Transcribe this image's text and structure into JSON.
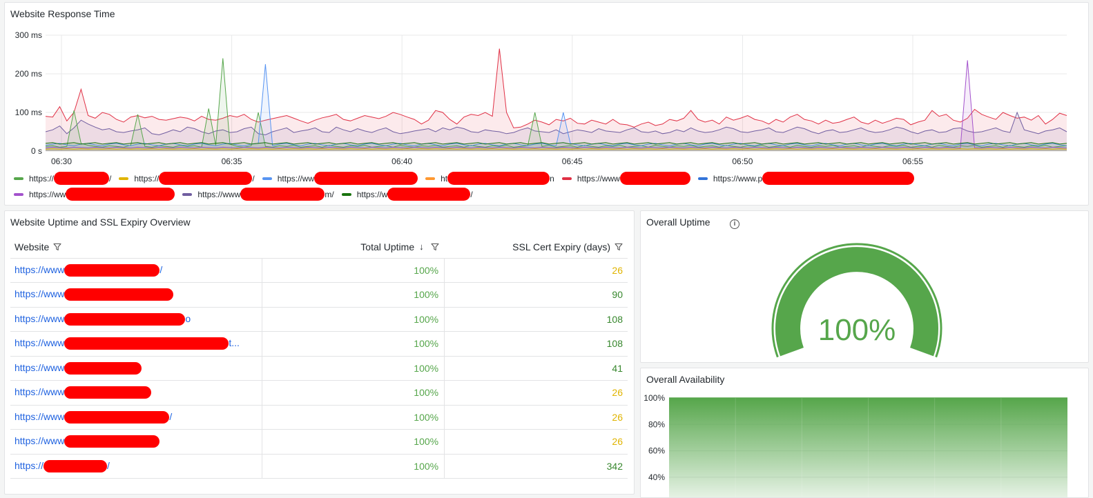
{
  "response_panel": {
    "title": "Website Response Time",
    "legend": [
      {
        "label": "https://",
        "suffix": "/",
        "color": "#56a64b"
      },
      {
        "label": "https://",
        "suffix": "/",
        "color": "#e0b400"
      },
      {
        "label": "https://ww",
        "suffix": "",
        "color": "#5794f2"
      },
      {
        "label": "ht",
        "suffix": "n",
        "color": "#ff9830"
      },
      {
        "label": "https://www",
        "suffix": "",
        "color": "#e02f44"
      },
      {
        "label": "https://www.p",
        "suffix": "",
        "color": "#3274d9"
      },
      {
        "label": "https://ww",
        "suffix": "",
        "color": "#a352cc"
      },
      {
        "label": "https://www",
        "suffix": "m/",
        "color": "#705da0"
      },
      {
        "label": "https://w",
        "suffix": "/",
        "color": "#19730e"
      }
    ]
  },
  "chart_data": {
    "type": "area",
    "title": "Website Response Time",
    "x_ticks": [
      "06:30",
      "06:35",
      "06:40",
      "06:45",
      "06:50",
      "06:55"
    ],
    "y_ticks": [
      "0 s",
      "100 ms",
      "200 ms",
      "300 ms"
    ],
    "ylim": [
      0,
      300
    ],
    "y_unit": "ms",
    "legend_placement": "bottom",
    "series": [
      {
        "color": "#e02f44",
        "values": [
          90,
          88,
          115,
          78,
          100,
          160,
          92,
          85,
          100,
          95,
          82,
          75,
          88,
          92,
          86,
          90,
          82,
          80,
          84,
          88,
          85,
          78,
          90,
          82,
          80,
          85,
          92,
          88,
          95,
          82,
          75,
          80,
          84,
          88,
          92,
          85,
          78,
          72,
          80,
          86,
          90,
          95,
          82,
          78,
          85,
          92,
          88,
          84,
          90,
          100,
          95,
          88,
          82,
          70,
          80,
          105,
          100,
          82,
          70,
          88,
          95,
          92,
          100,
          90,
          265,
          100,
          60,
          62,
          70,
          80,
          75,
          68,
          82,
          78,
          85,
          72,
          70,
          80,
          75,
          70,
          82,
          70,
          68,
          62,
          70,
          75,
          66,
          70,
          82,
          78,
          85,
          105,
          82,
          75,
          80,
          70,
          88,
          80,
          85,
          92,
          82,
          78,
          70,
          82,
          75,
          88,
          95,
          82,
          78,
          70,
          80,
          72,
          75,
          82,
          88,
          75,
          70,
          80,
          72,
          78,
          85,
          82,
          68,
          75,
          80,
          105,
          90,
          95,
          80,
          75,
          85,
          108,
          95,
          88,
          82,
          100,
          92,
          85,
          88,
          80,
          92,
          70,
          82,
          98,
          92
        ]
      },
      {
        "color": "#705da0",
        "values": [
          50,
          55,
          65,
          45,
          60,
          80,
          70,
          62,
          55,
          58,
          50,
          48,
          52,
          55,
          60,
          45,
          42,
          48,
          55,
          50,
          62,
          58,
          50,
          45,
          52,
          55,
          48,
          50,
          58,
          62,
          45,
          42,
          50,
          55,
          60,
          48,
          52,
          55,
          60,
          50,
          48,
          62,
          55,
          50,
          58,
          52,
          48,
          55,
          60,
          50,
          45,
          48,
          52,
          55,
          58,
          50,
          60,
          55,
          62,
          58,
          50,
          48,
          55,
          52,
          50,
          45,
          48,
          55,
          60,
          52,
          50,
          48,
          55,
          45,
          50,
          55,
          52,
          48,
          58,
          52,
          50,
          48,
          55,
          60,
          50,
          48,
          52,
          45,
          48,
          55,
          50,
          60,
          52,
          48,
          50,
          55,
          62,
          58,
          50,
          48,
          52,
          55,
          60,
          50,
          48,
          55,
          62,
          58,
          50,
          45,
          52,
          55,
          48,
          50,
          55,
          60,
          52,
          48,
          50,
          55,
          62,
          58,
          50,
          45,
          52,
          55,
          48,
          50,
          58,
          60,
          52,
          48,
          50,
          55,
          60,
          52,
          48,
          100,
          55,
          50,
          45,
          52,
          55,
          60,
          50
        ]
      },
      {
        "color": "#56a64b",
        "values": [
          12,
          14,
          10,
          12,
          105,
          20,
          15,
          12,
          10,
          14,
          12,
          10,
          15,
          95,
          12,
          10,
          14,
          12,
          10,
          15,
          12,
          14,
          10,
          110,
          15,
          240,
          18,
          12,
          10,
          14,
          100,
          12,
          10,
          14,
          12,
          15,
          10,
          12,
          14,
          10,
          15,
          12,
          10,
          14,
          12,
          15,
          10,
          12,
          14,
          10,
          15,
          12,
          10,
          14,
          12,
          15,
          10,
          12,
          14,
          10,
          15,
          12,
          10,
          14,
          12,
          15,
          10,
          12,
          14,
          100,
          12,
          15,
          10,
          12,
          14,
          10,
          15,
          12,
          10,
          14,
          12,
          15,
          10,
          12,
          14,
          10,
          15,
          12,
          10,
          14,
          12,
          15,
          10,
          12,
          14,
          10,
          15,
          12,
          10,
          14,
          12,
          15,
          10,
          12,
          14,
          10,
          15,
          12,
          10,
          14,
          12,
          15,
          10,
          12,
          14,
          10,
          15,
          12,
          10,
          14,
          12,
          15,
          10,
          12,
          14,
          10,
          15,
          12,
          10,
          14,
          12,
          15,
          10,
          12,
          14,
          10,
          15,
          12,
          10,
          14,
          12,
          15,
          10,
          12,
          14
        ]
      },
      {
        "color": "#5794f2",
        "values": [
          15,
          18,
          20,
          16,
          14,
          18,
          20,
          16,
          14,
          18,
          20,
          16,
          14,
          18,
          20,
          16,
          14,
          18,
          20,
          16,
          14,
          18,
          20,
          16,
          14,
          18,
          20,
          16,
          14,
          18,
          20,
          225,
          14,
          18,
          20,
          16,
          14,
          18,
          20,
          16,
          14,
          18,
          20,
          16,
          14,
          18,
          20,
          16,
          14,
          18,
          20,
          16,
          14,
          18,
          20,
          16,
          14,
          18,
          20,
          16,
          14,
          18,
          20,
          16,
          14,
          18,
          20,
          16,
          14,
          18,
          20,
          16,
          14,
          100,
          20,
          16,
          14,
          18,
          20,
          16,
          14,
          18,
          20,
          16,
          14,
          18,
          20,
          16,
          14,
          18,
          20,
          16,
          14,
          18,
          20,
          16,
          14,
          18,
          20,
          16,
          14,
          18,
          20,
          16,
          14,
          18,
          20,
          16,
          14,
          18,
          20,
          16,
          14,
          18,
          20,
          16,
          14,
          18,
          20,
          16,
          14,
          18,
          20,
          16,
          14,
          18,
          20,
          16,
          14,
          18,
          20,
          16,
          14,
          18,
          20,
          16,
          14,
          18,
          20,
          16,
          14,
          18,
          20,
          16,
          14
        ]
      },
      {
        "color": "#a352cc",
        "values": [
          8,
          10,
          9,
          8,
          10,
          9,
          8,
          10,
          9,
          8,
          10,
          9,
          8,
          10,
          9,
          8,
          10,
          9,
          8,
          10,
          9,
          8,
          10,
          9,
          8,
          10,
          9,
          8,
          10,
          9,
          8,
          10,
          9,
          8,
          10,
          9,
          8,
          10,
          9,
          8,
          10,
          9,
          8,
          10,
          9,
          8,
          10,
          9,
          8,
          10,
          9,
          8,
          10,
          9,
          8,
          10,
          9,
          8,
          10,
          9,
          8,
          10,
          9,
          8,
          10,
          9,
          8,
          10,
          9,
          8,
          10,
          9,
          8,
          10,
          9,
          8,
          10,
          9,
          8,
          10,
          9,
          8,
          10,
          9,
          8,
          10,
          9,
          8,
          10,
          9,
          8,
          10,
          9,
          8,
          10,
          9,
          8,
          10,
          9,
          8,
          10,
          9,
          8,
          10,
          9,
          8,
          10,
          9,
          8,
          10,
          9,
          8,
          10,
          9,
          8,
          10,
          9,
          8,
          10,
          9,
          8,
          10,
          9,
          8,
          10,
          9,
          8,
          10,
          9,
          8,
          235,
          9,
          8,
          10,
          9,
          8,
          10,
          9,
          8,
          10,
          9,
          8,
          10,
          9,
          8
        ]
      },
      {
        "color": "#19730e",
        "values": [
          20,
          22,
          18,
          20,
          22,
          18,
          20,
          22,
          18,
          20,
          22,
          18,
          20,
          22,
          18,
          20,
          22,
          18,
          20,
          22,
          18,
          20,
          22,
          18,
          20,
          22,
          18,
          20,
          22,
          18,
          20,
          22,
          18,
          20,
          22,
          18,
          20,
          22,
          18,
          20,
          22,
          18,
          20,
          22,
          18,
          20,
          22,
          18,
          20,
          22,
          18,
          20,
          22,
          18,
          20,
          22,
          18,
          20,
          22,
          18,
          20,
          22,
          18,
          20,
          22,
          18,
          20,
          22,
          18,
          20,
          22,
          18,
          20,
          22,
          18,
          20,
          22,
          18,
          20,
          22,
          18,
          20,
          22,
          18,
          20,
          22,
          18,
          20,
          22,
          18,
          20,
          22,
          18,
          20,
          22,
          18,
          20,
          22,
          18,
          20,
          22,
          18,
          20,
          22,
          18,
          20,
          22,
          18,
          20,
          22,
          18,
          20,
          22,
          18,
          20,
          22,
          18,
          20,
          22,
          18,
          20,
          22,
          18,
          20,
          22,
          18,
          20,
          22,
          18,
          20,
          22,
          18,
          20,
          22,
          18,
          20,
          22,
          18,
          20,
          22,
          18,
          20,
          22,
          18,
          20
        ]
      },
      {
        "color": "#e0b400",
        "values": [
          5,
          6,
          5,
          6,
          5,
          6,
          5,
          6,
          5,
          6,
          5,
          6,
          5,
          6,
          5,
          6,
          5,
          6,
          5,
          6,
          5,
          6,
          5,
          6,
          5,
          6,
          5,
          6,
          5,
          6,
          5,
          6,
          5,
          6,
          5,
          6,
          5,
          6,
          5,
          6,
          5,
          6,
          5,
          6,
          5,
          6,
          5,
          6,
          5,
          6,
          5,
          6,
          5,
          6,
          5,
          6,
          5,
          6,
          5,
          6,
          5,
          6,
          5,
          6,
          5,
          6,
          5,
          6,
          5,
          6,
          5,
          6,
          5,
          6,
          5,
          6,
          5,
          6,
          5,
          6,
          5,
          6,
          5,
          6,
          5,
          6,
          5,
          6,
          5,
          6,
          5,
          6,
          5,
          6,
          5,
          6,
          5,
          6,
          5,
          6,
          5,
          6,
          5,
          6,
          5,
          6,
          5,
          6,
          5,
          6,
          5,
          6,
          5,
          6,
          5,
          6,
          5,
          6,
          5,
          6,
          5,
          6,
          5,
          6,
          5,
          6,
          5,
          6,
          5,
          6,
          5,
          6,
          5,
          6,
          5,
          6,
          5,
          6,
          5,
          6,
          5,
          6,
          5,
          6,
          5
        ]
      }
    ]
  },
  "table_panel": {
    "title": "Website Uptime and SSL Expiry Overview",
    "headers": {
      "website": "Website",
      "uptime": "Total Uptime",
      "ssl": "SSL Cert Expiry (days)"
    },
    "rows": [
      {
        "website": "https://www",
        "tail": "/",
        "uptime": "100%",
        "ssl": "26",
        "ssl_color": "#e0b400"
      },
      {
        "website": "https://www",
        "tail": "",
        "uptime": "100%",
        "ssl": "90",
        "ssl_color": "#37872d"
      },
      {
        "website": "https://www",
        "tail": "o",
        "uptime": "100%",
        "ssl": "108",
        "ssl_color": "#37872d"
      },
      {
        "website": "https://www",
        "tail": "t...",
        "uptime": "100%",
        "ssl": "108",
        "ssl_color": "#37872d"
      },
      {
        "website": "https://www",
        "tail": "",
        "uptime": "100%",
        "ssl": "41",
        "ssl_color": "#37872d"
      },
      {
        "website": "https://www",
        "tail": "",
        "uptime": "100%",
        "ssl": "26",
        "ssl_color": "#e0b400"
      },
      {
        "website": "https://www",
        "tail": "/",
        "uptime": "100%",
        "ssl": "26",
        "ssl_color": "#e0b400"
      },
      {
        "website": "https://www",
        "tail": "",
        "uptime": "100%",
        "ssl": "26",
        "ssl_color": "#e0b400"
      },
      {
        "website": "https://",
        "tail": "/",
        "uptime": "100%",
        "ssl": "342",
        "ssl_color": "#37872d"
      }
    ]
  },
  "uptime_panel": {
    "title": "Overall Uptime",
    "value": "100%",
    "level": 1.0,
    "color": "#56a64b"
  },
  "avail_panel": {
    "title": "Overall Availability",
    "y_ticks": [
      "100%",
      "80%",
      "60%",
      "40%"
    ],
    "level": 1.0,
    "color": "#56a64b"
  }
}
